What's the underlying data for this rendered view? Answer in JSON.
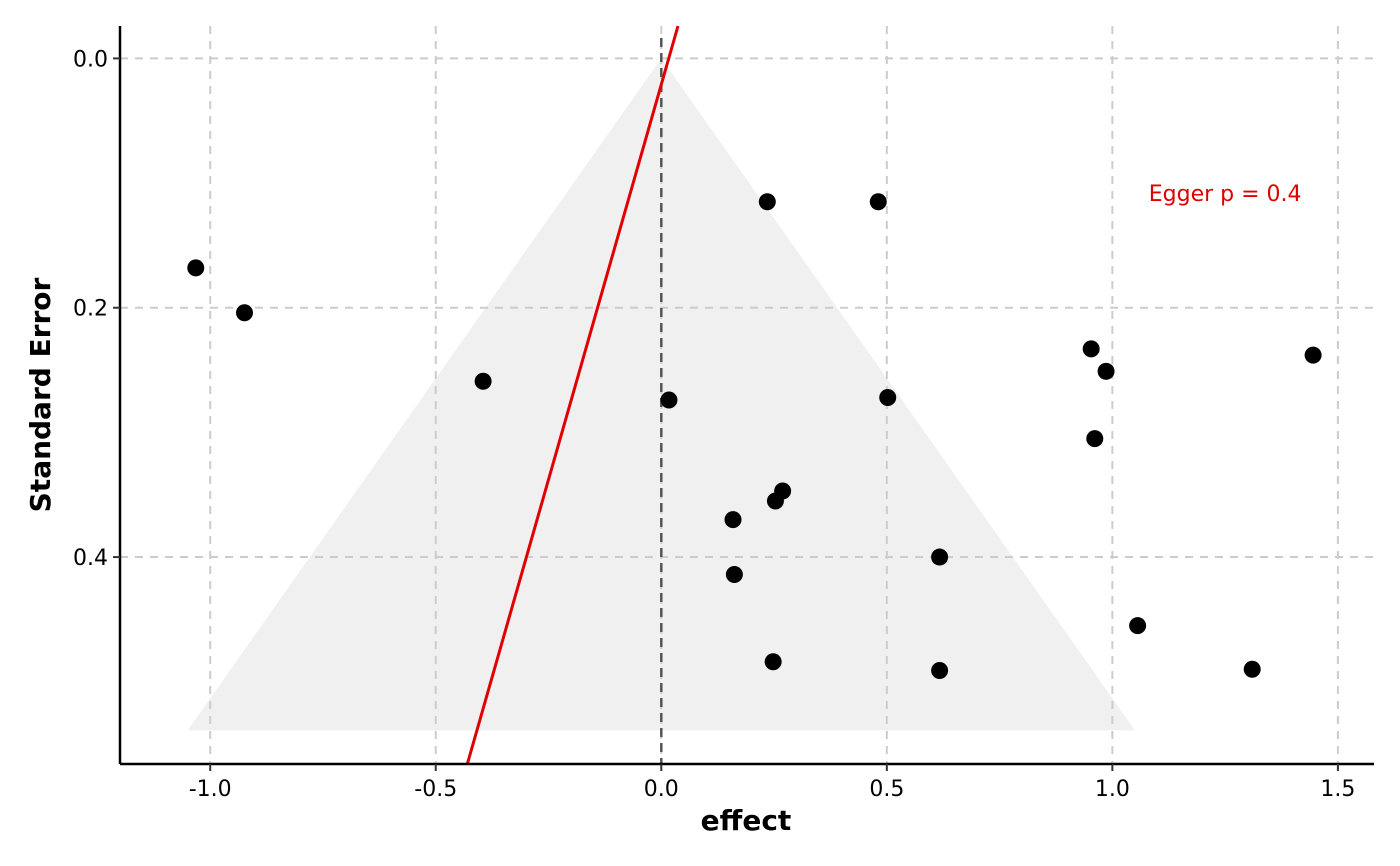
{
  "chart_data": {
    "type": "scatter",
    "title": "",
    "xlabel": "effect",
    "ylabel": "Standard Error",
    "xlim": [
      -1.2,
      1.58
    ],
    "ylim": [
      0.566,
      -0.026
    ],
    "y_reversed": true,
    "grid": true,
    "x_ticks": [
      -1.0,
      -0.5,
      0.0,
      0.5,
      1.0,
      1.5
    ],
    "x_tick_labels": [
      "-1.0",
      "-0.5",
      "0.0",
      "0.5",
      "1.0",
      "1.5"
    ],
    "y_ticks": [
      0.0,
      0.2,
      0.4
    ],
    "y_tick_labels": [
      "0.0",
      "0.2",
      "0.4"
    ],
    "funnel": {
      "center": 0.0,
      "apex_se": 0.0,
      "base_se": 0.539,
      "base_left": -1.05,
      "base_right": 1.05,
      "fill": "#f0f0f0"
    },
    "reference_line": {
      "x": 0.0,
      "color": "#555555",
      "style": "dashed"
    },
    "egger_line": {
      "color": "#e00000",
      "points": [
        [
          0.037,
          -0.026
        ],
        [
          -0.43,
          0.566
        ]
      ]
    },
    "annotation": {
      "text": "Egger p = 0.4",
      "x": 1.25,
      "y": 0.108,
      "color": "#e00000"
    },
    "point_color": "#000000",
    "points": [
      {
        "x": 0.235,
        "y": 0.115
      },
      {
        "x": 0.481,
        "y": 0.115
      },
      {
        "x": -1.032,
        "y": 0.168
      },
      {
        "x": -0.924,
        "y": 0.204
      },
      {
        "x": -0.395,
        "y": 0.259
      },
      {
        "x": 0.017,
        "y": 0.274
      },
      {
        "x": 0.502,
        "y": 0.272
      },
      {
        "x": 0.953,
        "y": 0.233
      },
      {
        "x": 0.986,
        "y": 0.251
      },
      {
        "x": 1.445,
        "y": 0.238
      },
      {
        "x": 0.961,
        "y": 0.305
      },
      {
        "x": 0.269,
        "y": 0.347
      },
      {
        "x": 0.253,
        "y": 0.355
      },
      {
        "x": 0.159,
        "y": 0.37
      },
      {
        "x": 0.617,
        "y": 0.4
      },
      {
        "x": 0.162,
        "y": 0.414
      },
      {
        "x": 1.056,
        "y": 0.455
      },
      {
        "x": 0.248,
        "y": 0.484
      },
      {
        "x": 0.617,
        "y": 0.491
      },
      {
        "x": 1.31,
        "y": 0.49
      }
    ]
  }
}
